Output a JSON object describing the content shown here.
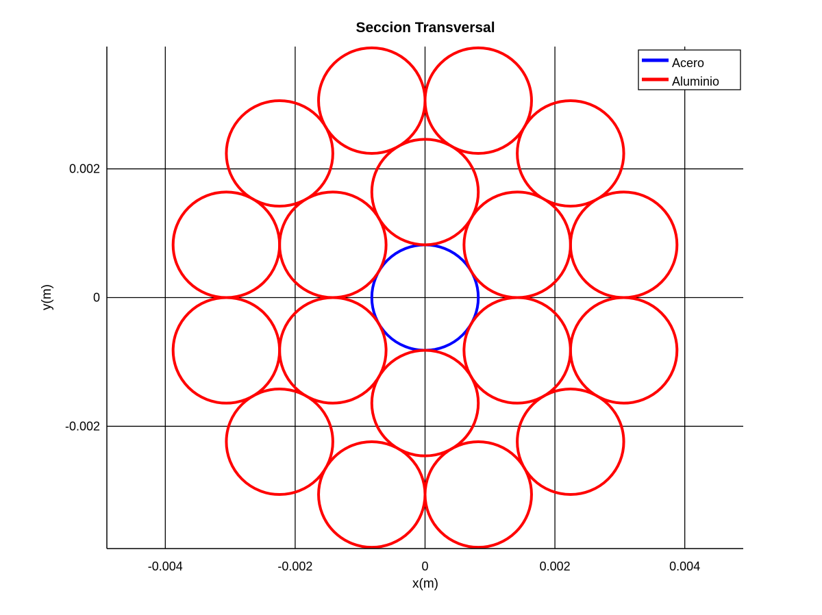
{
  "chart_data": {
    "type": "scatter",
    "title": "Seccion Transversal",
    "xlabel": "x(m)",
    "ylabel": "y(m)",
    "xlim": [
      -0.0049,
      0.0049
    ],
    "ylim": [
      -0.0039,
      0.0039
    ],
    "grid": true,
    "legend_position": "top-right",
    "x_ticks": [
      {
        "value": -0.004,
        "label": "-0.004"
      },
      {
        "value": -0.002,
        "label": "-0.002"
      },
      {
        "value": 0,
        "label": "0"
      },
      {
        "value": 0.002,
        "label": "0.002"
      },
      {
        "value": 0.004,
        "label": "0.004"
      }
    ],
    "y_ticks": [
      {
        "value": -0.002,
        "label": "-0.002"
      },
      {
        "value": 0,
        "label": "0"
      },
      {
        "value": 0.002,
        "label": "0.002"
      }
    ],
    "series": [
      {
        "name": "Acero",
        "color": "#0000ff",
        "radius": 0.00082,
        "centers": [
          [
            0,
            0
          ]
        ]
      },
      {
        "name": "Aluminio",
        "color": "#ff0000",
        "radius": 0.00082,
        "centers": [
          [
            0,
            0.00164
          ],
          [
            0.00142,
            0.00082
          ],
          [
            0.00142,
            -0.00082
          ],
          [
            0,
            -0.00164
          ],
          [
            -0.00142,
            -0.00082
          ],
          [
            -0.00142,
            0.00082
          ],
          [
            0.00082,
            0.00306
          ],
          [
            0.00224,
            0.00224
          ],
          [
            0.00306,
            0.00082
          ],
          [
            0.00306,
            -0.00082
          ],
          [
            0.00224,
            -0.00224
          ],
          [
            0.00082,
            -0.00306
          ],
          [
            -0.00082,
            -0.00306
          ],
          [
            -0.00224,
            -0.00224
          ],
          [
            -0.00306,
            -0.00082
          ],
          [
            -0.00306,
            0.00082
          ],
          [
            -0.00224,
            0.00224
          ],
          [
            -0.00082,
            0.00306
          ]
        ]
      }
    ]
  }
}
